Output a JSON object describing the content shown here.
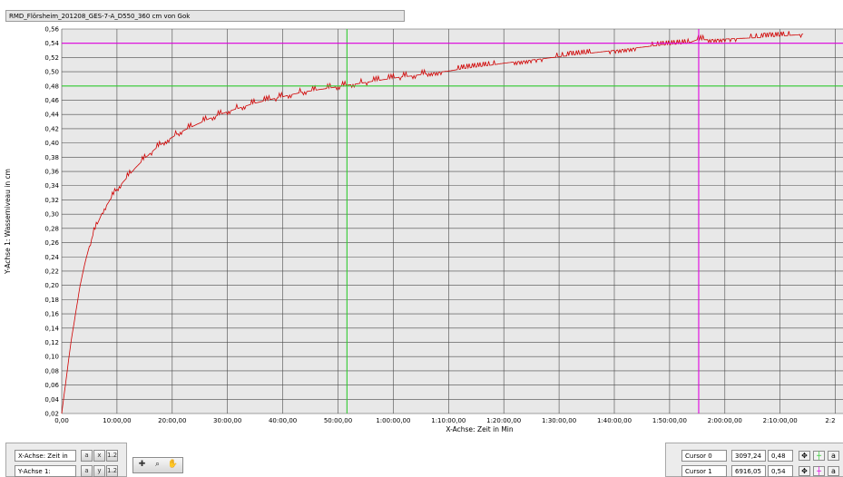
{
  "window": {
    "title": "RMD_Flörsheim_201208_GES-7-A_D550_360 cm von Gok"
  },
  "chart_data": {
    "type": "line",
    "title": "RMD_Flörsheim_201208_GES-7-A_D550_360 cm von Gok",
    "xlabel": "X-Achse: Zeit in Min",
    "ylabel": "Y-Achse 1: Wasserniveau in cm",
    "xlim": [
      0,
      8100
    ],
    "ylim": [
      0.02,
      0.56
    ],
    "grid": true,
    "x_ticks": [
      {
        "value": 0,
        "label": "0,00"
      },
      {
        "value": 600,
        "label": "10:00,00"
      },
      {
        "value": 1200,
        "label": "20:00,00"
      },
      {
        "value": 1800,
        "label": "30:00,00"
      },
      {
        "value": 2400,
        "label": "40:00,00"
      },
      {
        "value": 3000,
        "label": "50:00,00"
      },
      {
        "value": 3600,
        "label": "1:00:00,00"
      },
      {
        "value": 4200,
        "label": "1:10:00,00"
      },
      {
        "value": 4800,
        "label": "1:20:00,00"
      },
      {
        "value": 5400,
        "label": "1:30:00,00"
      },
      {
        "value": 6000,
        "label": "1:40:00,00"
      },
      {
        "value": 6600,
        "label": "1:50:00,00"
      },
      {
        "value": 7200,
        "label": "2:00:00,00"
      },
      {
        "value": 7800,
        "label": "2:10:00,00"
      },
      {
        "value": 8400,
        "label": "2:2"
      }
    ],
    "y_ticks": [
      {
        "value": 0.02,
        "label": "0,02"
      },
      {
        "value": 0.04,
        "label": "0,04"
      },
      {
        "value": 0.06,
        "label": "0,06"
      },
      {
        "value": 0.08,
        "label": "0,08"
      },
      {
        "value": 0.1,
        "label": "0,10"
      },
      {
        "value": 0.12,
        "label": "0,12"
      },
      {
        "value": 0.14,
        "label": "0,14"
      },
      {
        "value": 0.16,
        "label": "0,16"
      },
      {
        "value": 0.18,
        "label": "0,18"
      },
      {
        "value": 0.2,
        "label": "0,20"
      },
      {
        "value": 0.22,
        "label": "0,22"
      },
      {
        "value": 0.24,
        "label": "0,24"
      },
      {
        "value": 0.26,
        "label": "0,26"
      },
      {
        "value": 0.28,
        "label": "0,28"
      },
      {
        "value": 0.3,
        "label": "0,30"
      },
      {
        "value": 0.32,
        "label": "0,32"
      },
      {
        "value": 0.34,
        "label": "0,34"
      },
      {
        "value": 0.36,
        "label": "0,36"
      },
      {
        "value": 0.38,
        "label": "0,38"
      },
      {
        "value": 0.4,
        "label": "0,40"
      },
      {
        "value": 0.42,
        "label": "0,42"
      },
      {
        "value": 0.44,
        "label": "0,44"
      },
      {
        "value": 0.46,
        "label": "0,46"
      },
      {
        "value": 0.48,
        "label": "0,48"
      },
      {
        "value": 0.5,
        "label": "0,50"
      },
      {
        "value": 0.52,
        "label": "0,52"
      },
      {
        "value": 0.54,
        "label": "0,54"
      },
      {
        "value": 0.56,
        "label": "0,56"
      }
    ],
    "series": [
      {
        "color": "#d00000",
        "x": [
          0,
          30,
          60,
          100,
          150,
          200,
          250,
          300,
          350,
          400,
          450,
          500,
          550,
          600,
          700,
          800,
          900,
          1000,
          1100,
          1200,
          1300,
          1400,
          1500,
          1600,
          1700,
          1800,
          1900,
          2000,
          2100,
          2200,
          2300,
          2400,
          2500,
          2600,
          2700,
          2800,
          2900,
          3000,
          3100,
          3200,
          3300,
          3400,
          3500,
          3600,
          3700,
          3800,
          3900,
          4000,
          4200,
          4400,
          4600,
          4800,
          5000,
          5200,
          5400,
          5600,
          5800,
          6000,
          6200,
          6400,
          6600,
          6800,
          6900,
          7000,
          7200,
          7400,
          7600,
          7800,
          8000,
          8050
        ],
        "y": [
          0.02,
          0.05,
          0.08,
          0.12,
          0.16,
          0.2,
          0.23,
          0.255,
          0.275,
          0.29,
          0.305,
          0.315,
          0.325,
          0.335,
          0.35,
          0.365,
          0.378,
          0.39,
          0.4,
          0.408,
          0.416,
          0.422,
          0.428,
          0.434,
          0.439,
          0.444,
          0.448,
          0.452,
          0.456,
          0.459,
          0.462,
          0.465,
          0.468,
          0.471,
          0.473,
          0.475,
          0.477,
          0.479,
          0.481,
          0.483,
          0.485,
          0.487,
          0.489,
          0.491,
          0.493,
          0.494,
          0.496,
          0.498,
          0.501,
          0.505,
          0.508,
          0.512,
          0.515,
          0.518,
          0.521,
          0.524,
          0.527,
          0.53,
          0.533,
          0.536,
          0.538,
          0.54,
          0.545,
          0.545,
          0.546,
          0.547,
          0.548,
          0.55,
          0.552,
          0.553
        ]
      }
    ],
    "cursors": [
      {
        "name": "Cursor 0",
        "x": 3097.24,
        "y": 0.48,
        "x_label": "3097,24",
        "y_label": "0,48",
        "color": "#33cc33"
      },
      {
        "name": "Cursor 1",
        "x": 6916.05,
        "y": 0.54,
        "x_label": "6916,05",
        "y_label": "0,54",
        "color": "#e000e0"
      }
    ]
  },
  "controls": {
    "x_axis_label": "X-Achse: Zeit in",
    "y_axis_label": "Y-Achse 1:",
    "x_axis_buttons": [
      "a",
      "x",
      "1.2"
    ],
    "y_axis_buttons": [
      "a",
      "y",
      "1.2"
    ],
    "palette_icons": [
      "crosshair-icon",
      "zoom-icon",
      "pan-hand-icon"
    ]
  },
  "colors": {
    "plot_bg": "#e8e8e8",
    "grid": "#4a4a4a",
    "series": "#d00000",
    "cursor0": "#33cc33",
    "cursor1": "#e000e0"
  }
}
